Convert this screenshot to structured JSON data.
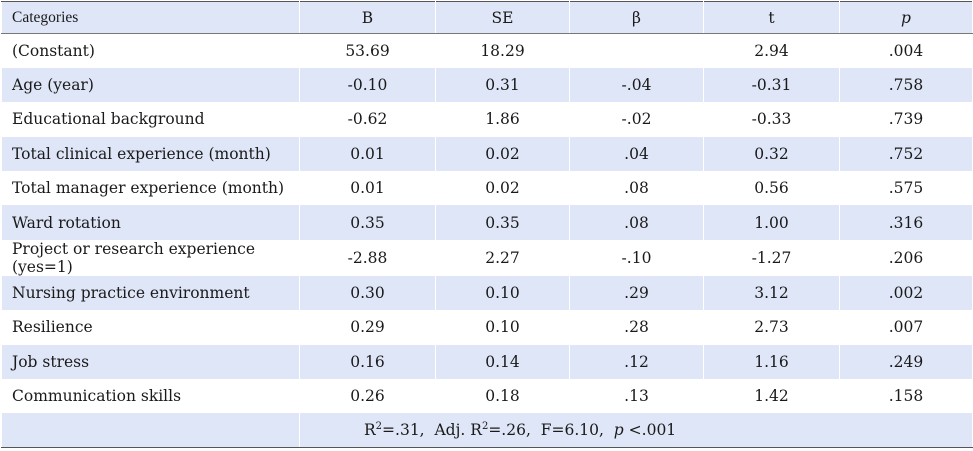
{
  "table": {
    "headers": [
      "Categories",
      "B",
      "SE",
      "β",
      "t",
      "p"
    ],
    "rows": [
      [
        "(Constant)",
        "53.69",
        "18.29",
        "",
        "2.94",
        ".004"
      ],
      [
        "Age (year)",
        "-0.10",
        "0.31",
        "-.04",
        "-0.31",
        ".758"
      ],
      [
        "Educational background",
        "-0.62",
        "1.86",
        "-.02",
        "-0.33",
        ".739"
      ],
      [
        "Total clinical experience (month)",
        "0.01",
        "0.02",
        ".04",
        "0.32",
        ".752"
      ],
      [
        "Total manager experience (month)",
        "0.01",
        "0.02",
        ".08",
        "0.56",
        ".575"
      ],
      [
        "Ward rotation",
        "0.35",
        "0.35",
        ".08",
        "1.00",
        ".316"
      ],
      [
        "Project or research experience (yes=1)",
        "-2.88",
        "2.27",
        "-.10",
        "-1.27",
        ".206"
      ],
      [
        "Nursing practice environment",
        "0.30",
        "0.10",
        ".29",
        "3.12",
        ".002"
      ],
      [
        "Resilience",
        "0.29",
        "0.10",
        ".28",
        "2.73",
        ".007"
      ],
      [
        "Job stress",
        "0.16",
        "0.14",
        ".12",
        "1.16",
        ".249"
      ],
      [
        "Communication skills",
        "0.26",
        "0.18",
        ".13",
        "1.42",
        ".158"
      ]
    ],
    "summary": {
      "r2_label": "R",
      "r2_sup": "2",
      "r2_value": "=.31,",
      "adj_label": "Adj. R",
      "adj_sup": "2",
      "adj_value": "=.26,",
      "f_text": "F=6.10,",
      "p_label": "p",
      "p_value": "<.001"
    }
  }
}
